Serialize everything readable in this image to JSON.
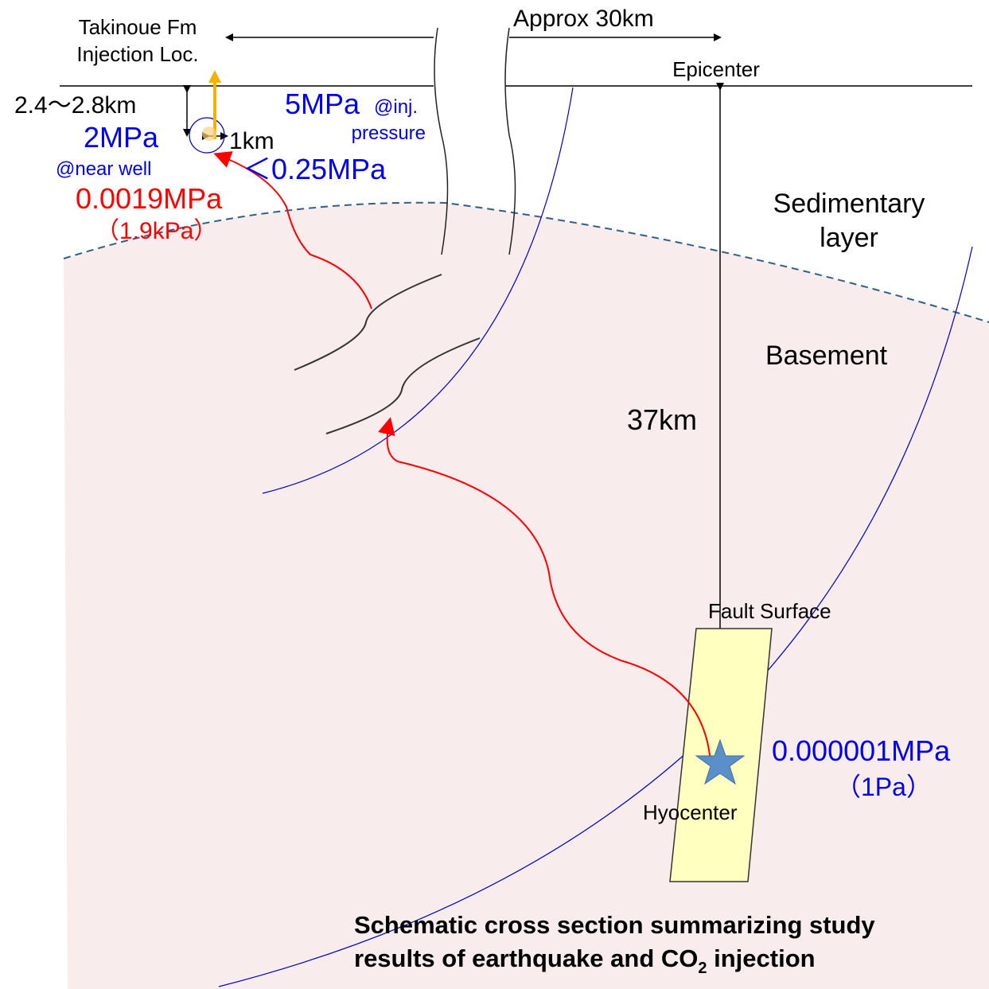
{
  "labels": {
    "formation": [
      "Takinoue Fm",
      "Injection Loc."
    ],
    "distance": "Approx 30km",
    "epicenter": "Epicenter",
    "depth_range": "2.4～2.8km",
    "inj_pressure": [
      "5MPa",
      "@inj.",
      "pressure"
    ],
    "near_well": [
      "2MPa",
      "@near well"
    ],
    "radius": "1km",
    "threshold": "＜0.25MPa",
    "induced": [
      "0.0019MPa",
      "（1.9kPa）"
    ],
    "sedimentary": [
      "Sedimentary",
      "layer"
    ],
    "basement": "Basement",
    "hypo_depth": "37km",
    "fault": "Fault Surface",
    "at_hypo": [
      "0.000001MPa",
      "（1Pa）"
    ],
    "hypocenter": "Hyocenter",
    "caption": [
      "Schematic cross section summarizing study",
      "results of earthquake and CO",
      "2",
      " injection"
    ]
  }
}
